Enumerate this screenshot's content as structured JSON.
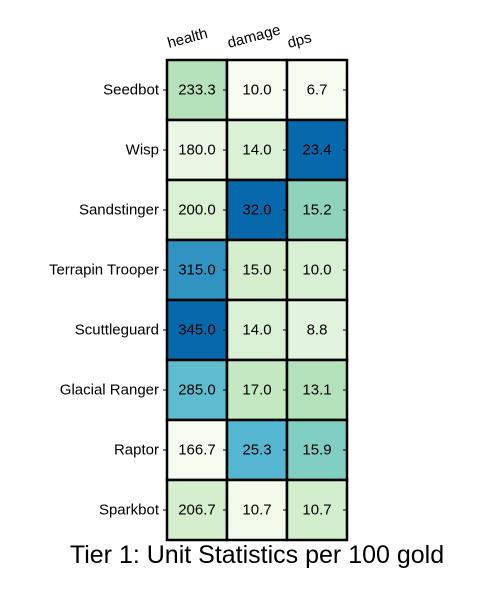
{
  "chart_data": {
    "type": "heatmap",
    "title": "Tier 1: Unit Statistics per 100 gold",
    "columns": [
      "health",
      "damage",
      "dps"
    ],
    "rows": [
      "Seedbot",
      "Wisp",
      "Sandstinger",
      "Terrapin Trooper",
      "Scuttleguard",
      "Glacial Ranger",
      "Raptor",
      "Sparkbot"
    ],
    "values": [
      [
        233.3,
        10.0,
        6.7
      ],
      [
        180.0,
        14.0,
        23.4
      ],
      [
        200.0,
        32.0,
        15.2
      ],
      [
        315.0,
        15.0,
        10.0
      ],
      [
        345.0,
        14.0,
        8.8
      ],
      [
        285.0,
        17.0,
        13.1
      ],
      [
        166.7,
        25.3,
        15.9
      ],
      [
        206.7,
        10.7,
        10.7
      ]
    ],
    "value_format": "0.0",
    "colormap": "GnBu",
    "color_scale": "per-column",
    "colormap_stops": [
      "#f7fcf0",
      "#e0f3db",
      "#ccebc5",
      "#a8ddb5",
      "#7bccc4",
      "#4eb3d3",
      "#2b8cbe",
      "#0868ac"
    ],
    "grid": false,
    "legend": "none"
  }
}
